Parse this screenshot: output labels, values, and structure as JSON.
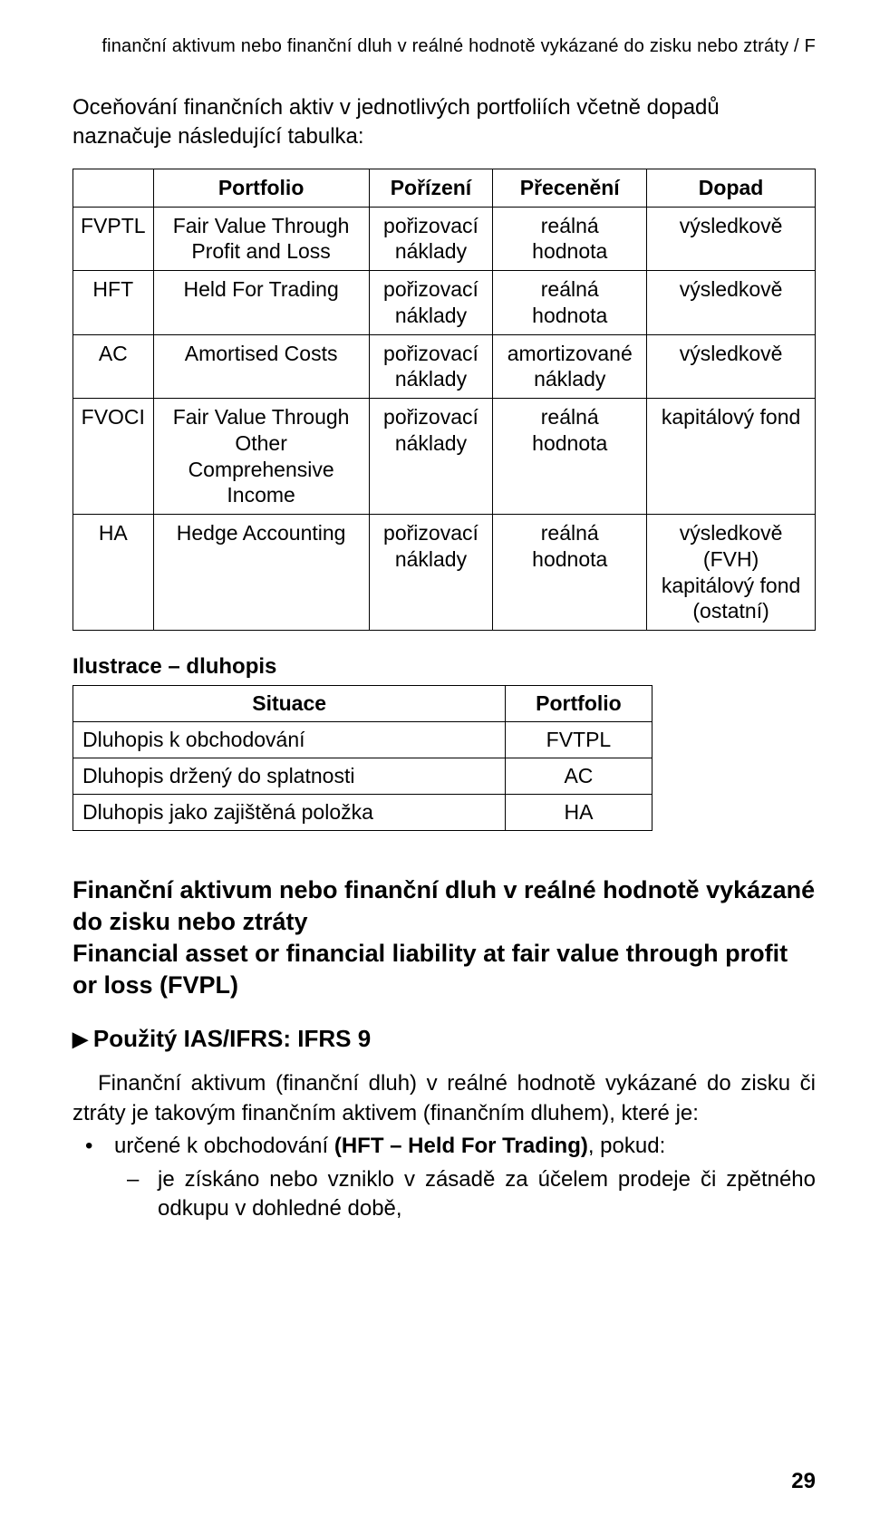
{
  "running_head": "finanční aktivum nebo finanční dluh v reálné hodnotě vykázané do zisku nebo ztráty / F",
  "intro": "Oceňování finančních aktiv v jednotlivých portfoliích včetně dopadů naznačuje následující tabulka:",
  "table1": {
    "headers": {
      "c0": "",
      "c1": "Portfolio",
      "c2": "Pořízení",
      "c3": "Přecenění",
      "c4": "Dopad"
    },
    "rows": [
      {
        "code": "FVPTL",
        "portfolio": "Fair Value Through Profit and Loss",
        "acq": "pořizovací náklady",
        "reval": "reálná hodnota",
        "impact": "výsledkově"
      },
      {
        "code": "HFT",
        "portfolio": "Held For Trading",
        "acq": "pořizovací náklady",
        "reval": "reálná hodnota",
        "impact": "výsledkově"
      },
      {
        "code": "AC",
        "portfolio": "Amortised Costs",
        "acq": "pořizovací náklady",
        "reval": "amortizované náklady",
        "impact": "výsledkově"
      },
      {
        "code": "FVOCI",
        "portfolio": "Fair Value Through Other Comprehensive Income",
        "acq": "pořizovací náklady",
        "reval": "reálná hodnota",
        "impact": "kapitálový fond"
      },
      {
        "code": "HA",
        "portfolio": "Hedge Accounting",
        "acq": "pořizovací náklady",
        "reval": "reálná hodnota",
        "impact": "výsledkově (FVH) kapitálový fond (ostatní)"
      }
    ]
  },
  "subhead": "Ilustrace – dluhopis",
  "table2": {
    "headers": {
      "c0": "Situace",
      "c1": "Portfolio"
    },
    "rows": [
      {
        "sit": "Dluhopis k obchodování",
        "pf": "FVTPL"
      },
      {
        "sit": "Dluhopis držený do splatnosti",
        "pf": "AC"
      },
      {
        "sit": "Dluhopis jako zajištěná položka",
        "pf": "HA"
      }
    ]
  },
  "sec_title_cz1": "Finanční aktivum nebo finanční dluh v reálné hodnotě vykázané do zisku nebo ztráty",
  "sec_title_en": "Financial asset or financial liability at fair value through profit or loss (FVPL)",
  "ifrs_line": "Použitý IAS/IFRS: IFRS 9",
  "triangle": "▶",
  "para1": "Finanční aktivum (finanční dluh) v reálné hodnotě vykázané do zisku či ztráty je takovým finančním aktivem (finančním dluhem), které je:",
  "bullet1_pre": "určené k obchodování ",
  "bullet1_bold": "(HFT – Held For Trading)",
  "bullet1_post": ", pokud:",
  "dash1": "je získáno nebo vzniklo v zásadě za účelem prodeje či zpětného odkupu v dohledné době,",
  "page_num": "29"
}
